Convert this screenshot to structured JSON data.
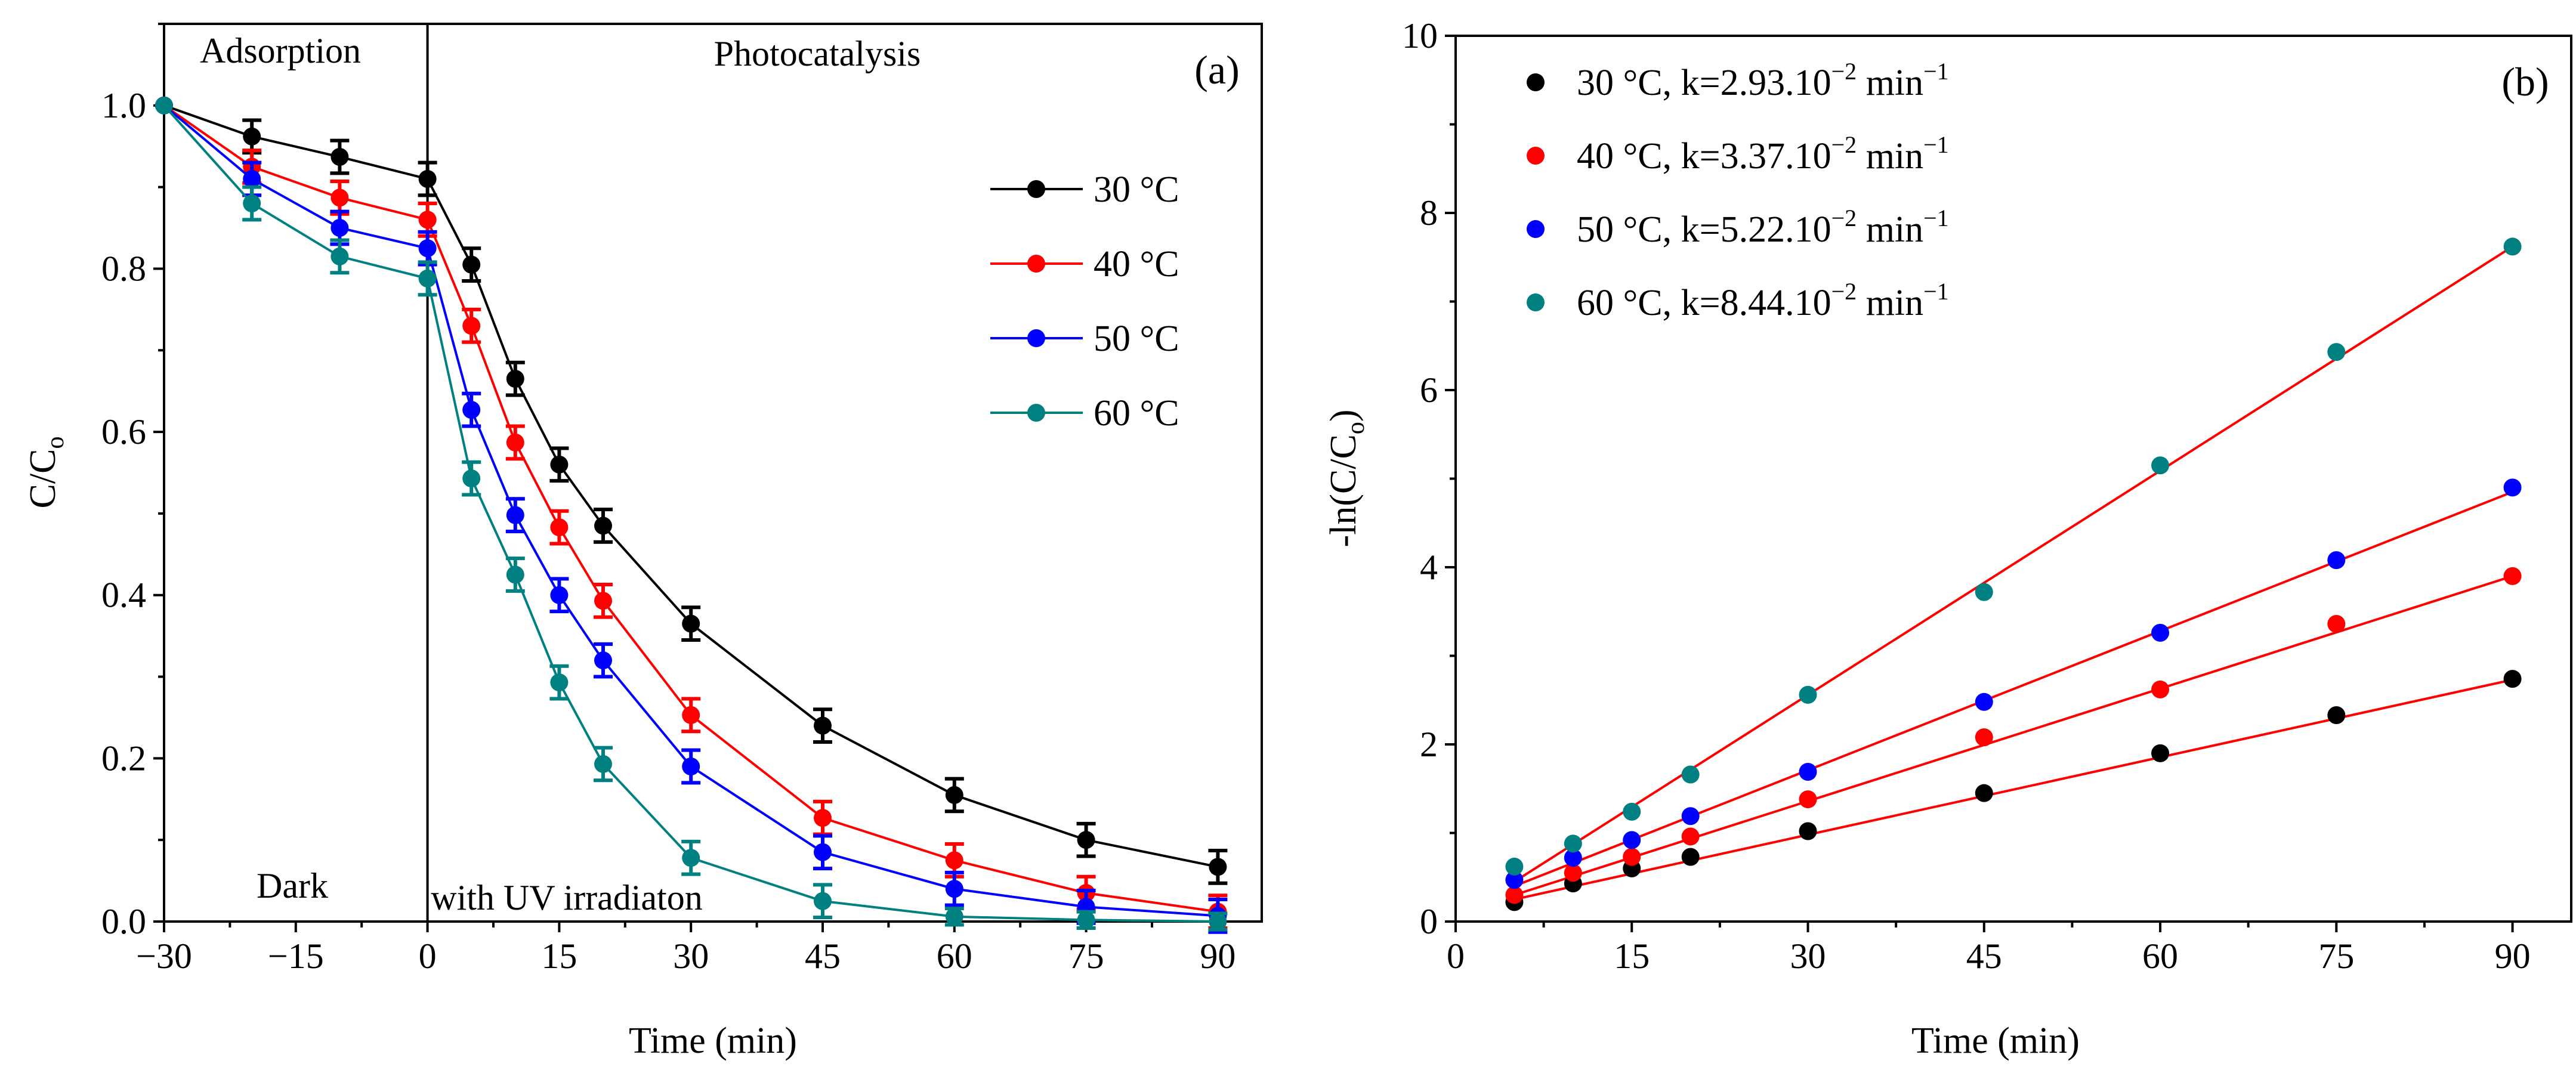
{
  "chart_data": [
    {
      "type": "line",
      "panel_label": "(a)",
      "xlabel": "Time (min)",
      "ylabel": "C/C",
      "ylabel_sub": "o",
      "xlim": [
        -30,
        95
      ],
      "ylim": [
        0,
        1.1
      ],
      "xticks": [
        -30,
        -15,
        0,
        15,
        30,
        45,
        60,
        75,
        90
      ],
      "xtick_labels": [
        "−30",
        "−15",
        "0",
        "15",
        "30",
        "45",
        "60",
        "75",
        "90"
      ],
      "yticks": [
        0.0,
        0.2,
        0.4,
        0.6,
        0.8,
        1.0
      ],
      "ytick_labels": [
        "0.0",
        "0.2",
        "0.4",
        "0.6",
        "0.8",
        "1.0"
      ],
      "grid": false,
      "legend_position": "right",
      "region_labels": {
        "top_left": "Adsorption",
        "top_right": "Photocatalysis",
        "bottom_left": "Dark",
        "bottom_right": "with UV irradiaton"
      },
      "divider_x": 0,
      "x": [
        -30,
        -20,
        -10,
        0,
        5,
        10,
        15,
        20,
        30,
        45,
        60,
        75,
        90
      ],
      "series": [
        {
          "name": "30 °C",
          "color": "#000000",
          "values": [
            1.0,
            0.962,
            0.937,
            0.91,
            0.805,
            0.665,
            0.56,
            0.485,
            0.365,
            0.24,
            0.155,
            0.1,
            0.067
          ],
          "errors": [
            0,
            0.02,
            0.02,
            0.02,
            0.02,
            0.02,
            0.02,
            0.02,
            0.02,
            0.02,
            0.02,
            0.02,
            0.02
          ]
        },
        {
          "name": "40 °C",
          "color": "#ff0000",
          "values": [
            1.0,
            0.925,
            0.887,
            0.86,
            0.73,
            0.587,
            0.483,
            0.393,
            0.253,
            0.127,
            0.075,
            0.035,
            0.012
          ],
          "errors": [
            0,
            0.02,
            0.02,
            0.02,
            0.02,
            0.02,
            0.02,
            0.02,
            0.02,
            0.02,
            0.02,
            0.02,
            0.02
          ]
        },
        {
          "name": "50 °C",
          "color": "#0000ff",
          "values": [
            1.0,
            0.91,
            0.85,
            0.825,
            0.627,
            0.498,
            0.4,
            0.32,
            0.19,
            0.085,
            0.04,
            0.018,
            0.007
          ],
          "errors": [
            0,
            0.02,
            0.02,
            0.02,
            0.02,
            0.02,
            0.02,
            0.02,
            0.02,
            0.02,
            0.02,
            0.02,
            0.02
          ]
        },
        {
          "name": "60 °C",
          "color": "#008080",
          "values": [
            1.0,
            0.88,
            0.815,
            0.788,
            0.543,
            0.425,
            0.293,
            0.193,
            0.078,
            0.025,
            0.006,
            0.002,
            0.0
          ],
          "errors": [
            0,
            0.02,
            0.02,
            0.02,
            0.02,
            0.02,
            0.02,
            0.02,
            0.02,
            0.02,
            0.01,
            0.01,
            0.01
          ]
        }
      ]
    },
    {
      "type": "scatter",
      "panel_label": "(b)",
      "xlabel": "Time (min)",
      "ylabel": "-ln(C/C",
      "ylabel_sub": "o",
      "ylabel_close": ")",
      "xlim": [
        0,
        95
      ],
      "ylim": [
        0,
        10
      ],
      "xticks": [
        0,
        15,
        30,
        45,
        60,
        75,
        90
      ],
      "xtick_labels": [
        "0",
        "15",
        "30",
        "45",
        "60",
        "75",
        "90"
      ],
      "yticks": [
        0,
        2,
        4,
        6,
        8,
        10
      ],
      "ytick_labels": [
        "0",
        "2",
        "4",
        "6",
        "8",
        "10"
      ],
      "grid": false,
      "legend_position": "top-left",
      "fit_color": "#ff0000",
      "x": [
        5,
        10,
        15,
        20,
        30,
        45,
        60,
        75,
        90
      ],
      "series": [
        {
          "temp": "30 °C",
          "k_mant": "2.93",
          "color": "#000000",
          "values": [
            0.22,
            0.43,
            0.6,
            0.73,
            1.02,
            1.45,
            1.9,
            2.33,
            2.74
          ],
          "fit": [
            [
              5,
              0.25
            ],
            [
              90,
              2.73
            ]
          ]
        },
        {
          "temp": "40 °C",
          "k_mant": "3.37",
          "color": "#ff0000",
          "values": [
            0.3,
            0.55,
            0.73,
            0.96,
            1.38,
            2.08,
            2.62,
            3.36,
            3.9
          ],
          "fit": [
            [
              5,
              0.3
            ],
            [
              90,
              3.9
            ]
          ]
        },
        {
          "temp": "50 °C",
          "k_mant": "5.22",
          "color": "#0000ff",
          "values": [
            0.47,
            0.72,
            0.92,
            1.19,
            1.69,
            2.48,
            3.26,
            4.08,
            4.9
          ],
          "fit": [
            [
              5,
              0.4
            ],
            [
              90,
              4.85
            ]
          ]
        },
        {
          "temp": "60 °C",
          "k_mant": "8.44",
          "color": "#008080",
          "values": [
            0.62,
            0.88,
            1.24,
            1.66,
            2.56,
            3.72,
            5.15,
            6.43,
            7.62
          ],
          "fit": [
            [
              5,
              0.45
            ],
            [
              90,
              7.62
            ]
          ]
        }
      ],
      "legend_k_prefix": ", k=",
      "legend_k_exp": "−2",
      "legend_unit": "min",
      "legend_unit_exp": "−1"
    }
  ]
}
